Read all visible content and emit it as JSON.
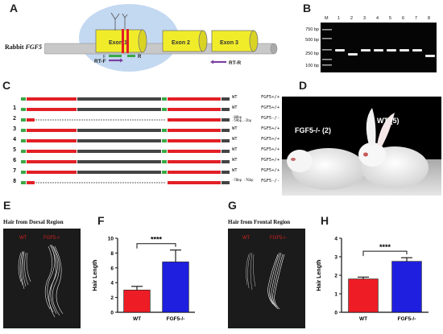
{
  "panels": {
    "A": {
      "letter": "A",
      "gene_prefix": "Rabbit ",
      "gene_name": "FGF5",
      "exons": [
        "Exon 1",
        "Exon 2",
        "Exon 3"
      ],
      "primers": {
        "f": "RT-F",
        "r": "RT-R",
        "c": "R"
      },
      "colors": {
        "exon": "#f1ec2a",
        "halo": "#bcd4f0",
        "shaft": "#c8c8c8",
        "red_cut": "#e21f26",
        "primer": "#7b3fa0",
        "green": "#3aa845"
      }
    },
    "B": {
      "letter": "B",
      "ladder": [
        "750 bp",
        "500 bp",
        "250 bp",
        "100 bp"
      ],
      "lanes": [
        "M",
        "1",
        "2",
        "3",
        "4",
        "5",
        "6",
        "7",
        "8"
      ]
    },
    "C": {
      "letter": "C",
      "rows": [
        {
          "num": "",
          "status": "WT",
          "genotype": "FGF5+/+",
          "type": "wt"
        },
        {
          "num": "1",
          "status": "WT",
          "genotype": "FGF5+/+",
          "type": "wt"
        },
        {
          "num": "2",
          "status": "-88bp -59bp,-2bp",
          "genotype": "FGF5-/-",
          "type": "del"
        },
        {
          "num": "3",
          "status": "WT",
          "genotype": "FGF5+/+",
          "type": "wt"
        },
        {
          "num": "4",
          "status": "WT",
          "genotype": "FGF5+/+",
          "type": "wt"
        },
        {
          "num": "5",
          "status": "WT",
          "genotype": "FGF5+/+",
          "type": "wt"
        },
        {
          "num": "6",
          "status": "WT",
          "genotype": "FGF5+/+",
          "type": "wt"
        },
        {
          "num": "7",
          "status": "WT",
          "genotype": "FGF5+/+",
          "type": "wt"
        },
        {
          "num": "8",
          "status": "-70bp -76bp",
          "genotype": "FGF5-/-",
          "type": "del"
        }
      ]
    },
    "D": {
      "letter": "D",
      "label_left": "FGF5-/- (2)",
      "label_right": "WT (5)"
    },
    "E": {
      "letter": "E",
      "title": "Hair from Dorsal Region",
      "tag_left": "WT",
      "tag_right": "FGF5-/-"
    },
    "G": {
      "letter": "G",
      "title": "Hair from Frontal Region",
      "tag_left": "WT",
      "tag_right": "FGF5-/-"
    }
  },
  "chart_data": [
    {
      "type": "bar",
      "panel": "F",
      "letter": "F",
      "categories": [
        "WT",
        "FGF5-/-"
      ],
      "values": [
        3.0,
        6.8
      ],
      "errors": [
        0.5,
        1.6
      ],
      "colors": [
        "#ee1c25",
        "#1f1fe0"
      ],
      "ylabel": "Hair Length",
      "ylim": [
        0,
        10
      ],
      "yticks": [
        0,
        2,
        4,
        6,
        8,
        10
      ],
      "significance": "****"
    },
    {
      "type": "bar",
      "panel": "H",
      "letter": "H",
      "categories": [
        "WT",
        "FGF5-/-"
      ],
      "values": [
        1.8,
        2.75
      ],
      "errors": [
        0.1,
        0.2
      ],
      "colors": [
        "#ee1c25",
        "#1f1fe0"
      ],
      "ylabel": "Hair Length",
      "ylim": [
        0,
        4
      ],
      "yticks": [
        0,
        1,
        2,
        3,
        4
      ],
      "significance": "****"
    }
  ]
}
